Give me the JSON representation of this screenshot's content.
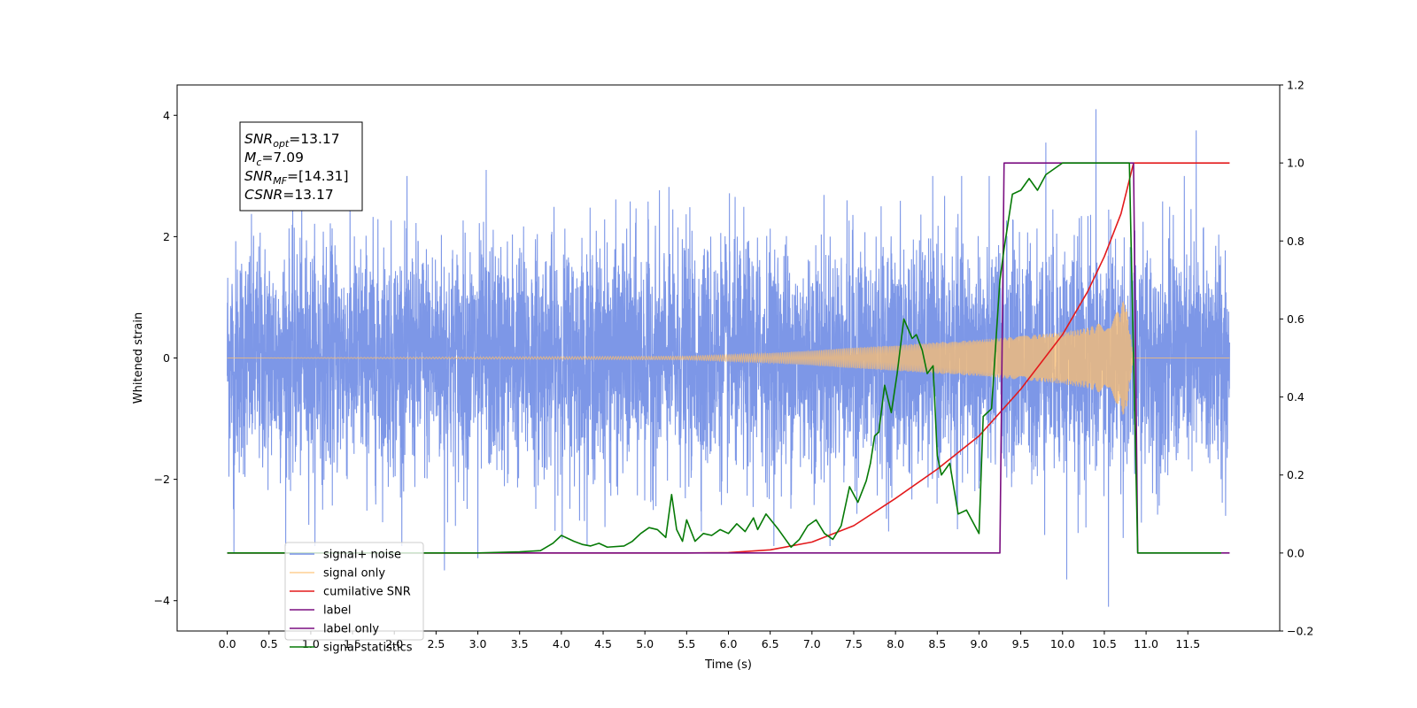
{
  "chart_data": {
    "type": "line",
    "xlabel": "Time (s)",
    "ylabel": "Whitened strain",
    "xlim": [
      -0.6,
      12.6
    ],
    "ylim_left": [
      -4.5,
      4.5
    ],
    "ylim_right": [
      -0.2,
      1.2
    ],
    "x_ticks": [
      0.0,
      0.5,
      1.0,
      1.5,
      2.0,
      2.5,
      3.0,
      3.5,
      4.0,
      4.5,
      5.0,
      5.5,
      6.0,
      6.5,
      7.0,
      7.5,
      8.0,
      8.5,
      9.0,
      9.5,
      10.0,
      10.5,
      11.0,
      11.5
    ],
    "x_tick_labels": [
      "0.0",
      "0.5",
      "1.0",
      "1.5",
      "2.0",
      "2.5",
      "3.0",
      "3.5",
      "4.0",
      "4.5",
      "5.0",
      "5.5",
      "6.0",
      "6.5",
      "7.0",
      "7.5",
      "8.0",
      "8.5",
      "9.0",
      "9.5",
      "10.0",
      "10.5",
      "11.0",
      "11.5"
    ],
    "y_left_ticks": [
      -4,
      -2,
      0,
      2,
      4
    ],
    "y_left_tick_labels": [
      "−4",
      "−2",
      "0",
      "2",
      "4"
    ],
    "y_right_ticks": [
      -0.2,
      0.0,
      0.2,
      0.4,
      0.6,
      0.8,
      1.0,
      1.2
    ],
    "y_right_tick_labels": [
      "−0.2",
      "0.0",
      "0.2",
      "0.4",
      "0.6",
      "0.8",
      "1.0",
      "1.2"
    ],
    "grid": false,
    "legend_position": "lower-left",
    "annotation": {
      "lines": [
        {
          "base": "SNR",
          "sub": "opt",
          "value": "=13.17"
        },
        {
          "base": "M",
          "sub": "c",
          "value": "=7.09"
        },
        {
          "base": "SNR",
          "sub": "MF",
          "value": "=[14.31]"
        },
        {
          "base": "CSNR",
          "sub": "",
          "value": "=13.17"
        }
      ]
    },
    "series": [
      {
        "name": "signal+ noise",
        "color": "#7691e6",
        "axis": "left",
        "description": "dense noise trace",
        "x_start": 0.0,
        "x_end": 12.0,
        "amplitude_std": 0.95,
        "notable_peaks": [
          {
            "x": 0.08,
            "y": -3.2
          },
          {
            "x": 2.6,
            "y": -3.5
          },
          {
            "x": 3.1,
            "y": 3.1
          },
          {
            "x": 3.0,
            "y": -3.3
          },
          {
            "x": 10.05,
            "y": -3.65
          },
          {
            "x": 10.4,
            "y": 4.1
          },
          {
            "x": 10.55,
            "y": -4.1
          },
          {
            "x": 11.6,
            "y": 3.75
          },
          {
            "x": 9.8,
            "y": 3.55
          }
        ]
      },
      {
        "name": "signal only",
        "color": "#fdbf6f",
        "axis": "left",
        "description": "chirp envelope",
        "x": [
          0.0,
          5.5,
          6.5,
          7.0,
          7.5,
          8.0,
          8.5,
          9.0,
          9.5,
          10.0,
          10.3,
          10.5,
          10.65,
          10.75,
          10.8,
          10.85,
          12.0
        ],
        "envelope": [
          0.0,
          0.03,
          0.08,
          0.12,
          0.17,
          0.21,
          0.26,
          0.3,
          0.36,
          0.43,
          0.5,
          0.6,
          0.75,
          1.0,
          0.5,
          0.0,
          0.0
        ]
      },
      {
        "name": "cumilative SNR",
        "color": "#e31a1c",
        "axis": "right",
        "x": [
          0.0,
          5.5,
          6.0,
          6.5,
          7.0,
          7.5,
          8.0,
          8.5,
          9.0,
          9.5,
          10.0,
          10.3,
          10.5,
          10.7,
          10.85,
          12.0
        ],
        "y": [
          0.0,
          0.0,
          0.001,
          0.008,
          0.028,
          0.07,
          0.14,
          0.215,
          0.3,
          0.42,
          0.56,
          0.67,
          0.76,
          0.87,
          1.0,
          1.0
        ]
      },
      {
        "name": "label",
        "color": "#7b0f81",
        "axis": "right",
        "x": [
          0.0,
          9.25,
          9.3,
          10.85,
          10.9,
          12.0
        ],
        "y": [
          0.0,
          0.0,
          1.0,
          1.0,
          0.0,
          0.0
        ]
      },
      {
        "name": "label only",
        "color": "#7b0f81",
        "axis": "right",
        "x": [],
        "y": []
      },
      {
        "name": "signal statistics",
        "color": "#067a06",
        "axis": "right",
        "x": [
          0.0,
          3.0,
          3.5,
          3.75,
          3.9,
          4.0,
          4.15,
          4.25,
          4.35,
          4.45,
          4.55,
          4.75,
          4.85,
          4.95,
          5.05,
          5.15,
          5.25,
          5.32,
          5.38,
          5.45,
          5.5,
          5.6,
          5.7,
          5.8,
          5.9,
          6.0,
          6.1,
          6.2,
          6.3,
          6.35,
          6.45,
          6.6,
          6.75,
          6.85,
          6.95,
          7.05,
          7.15,
          7.25,
          7.35,
          7.45,
          7.55,
          7.65,
          7.7,
          7.75,
          7.8,
          7.87,
          7.95,
          8.02,
          8.1,
          8.2,
          8.25,
          8.32,
          8.38,
          8.45,
          8.5,
          8.55,
          8.65,
          8.75,
          8.85,
          8.9,
          9.0,
          9.05,
          9.15,
          9.25,
          9.3,
          9.4,
          9.5,
          9.6,
          9.7,
          9.8,
          10.0,
          10.8,
          10.9,
          11.0,
          11.9
        ],
        "y": [
          0.0,
          0.0,
          0.003,
          0.006,
          0.025,
          0.045,
          0.03,
          0.022,
          0.018,
          0.025,
          0.015,
          0.018,
          0.03,
          0.05,
          0.065,
          0.06,
          0.04,
          0.15,
          0.06,
          0.03,
          0.085,
          0.03,
          0.05,
          0.045,
          0.06,
          0.05,
          0.075,
          0.055,
          0.09,
          0.06,
          0.1,
          0.06,
          0.015,
          0.035,
          0.07,
          0.085,
          0.05,
          0.035,
          0.07,
          0.17,
          0.13,
          0.185,
          0.23,
          0.3,
          0.31,
          0.43,
          0.36,
          0.46,
          0.6,
          0.55,
          0.56,
          0.52,
          0.46,
          0.48,
          0.25,
          0.2,
          0.23,
          0.1,
          0.11,
          0.09,
          0.05,
          0.35,
          0.37,
          0.7,
          0.78,
          0.92,
          0.93,
          0.96,
          0.93,
          0.97,
          1.0,
          1.0,
          0.0,
          0.0,
          0.0
        ]
      }
    ]
  }
}
